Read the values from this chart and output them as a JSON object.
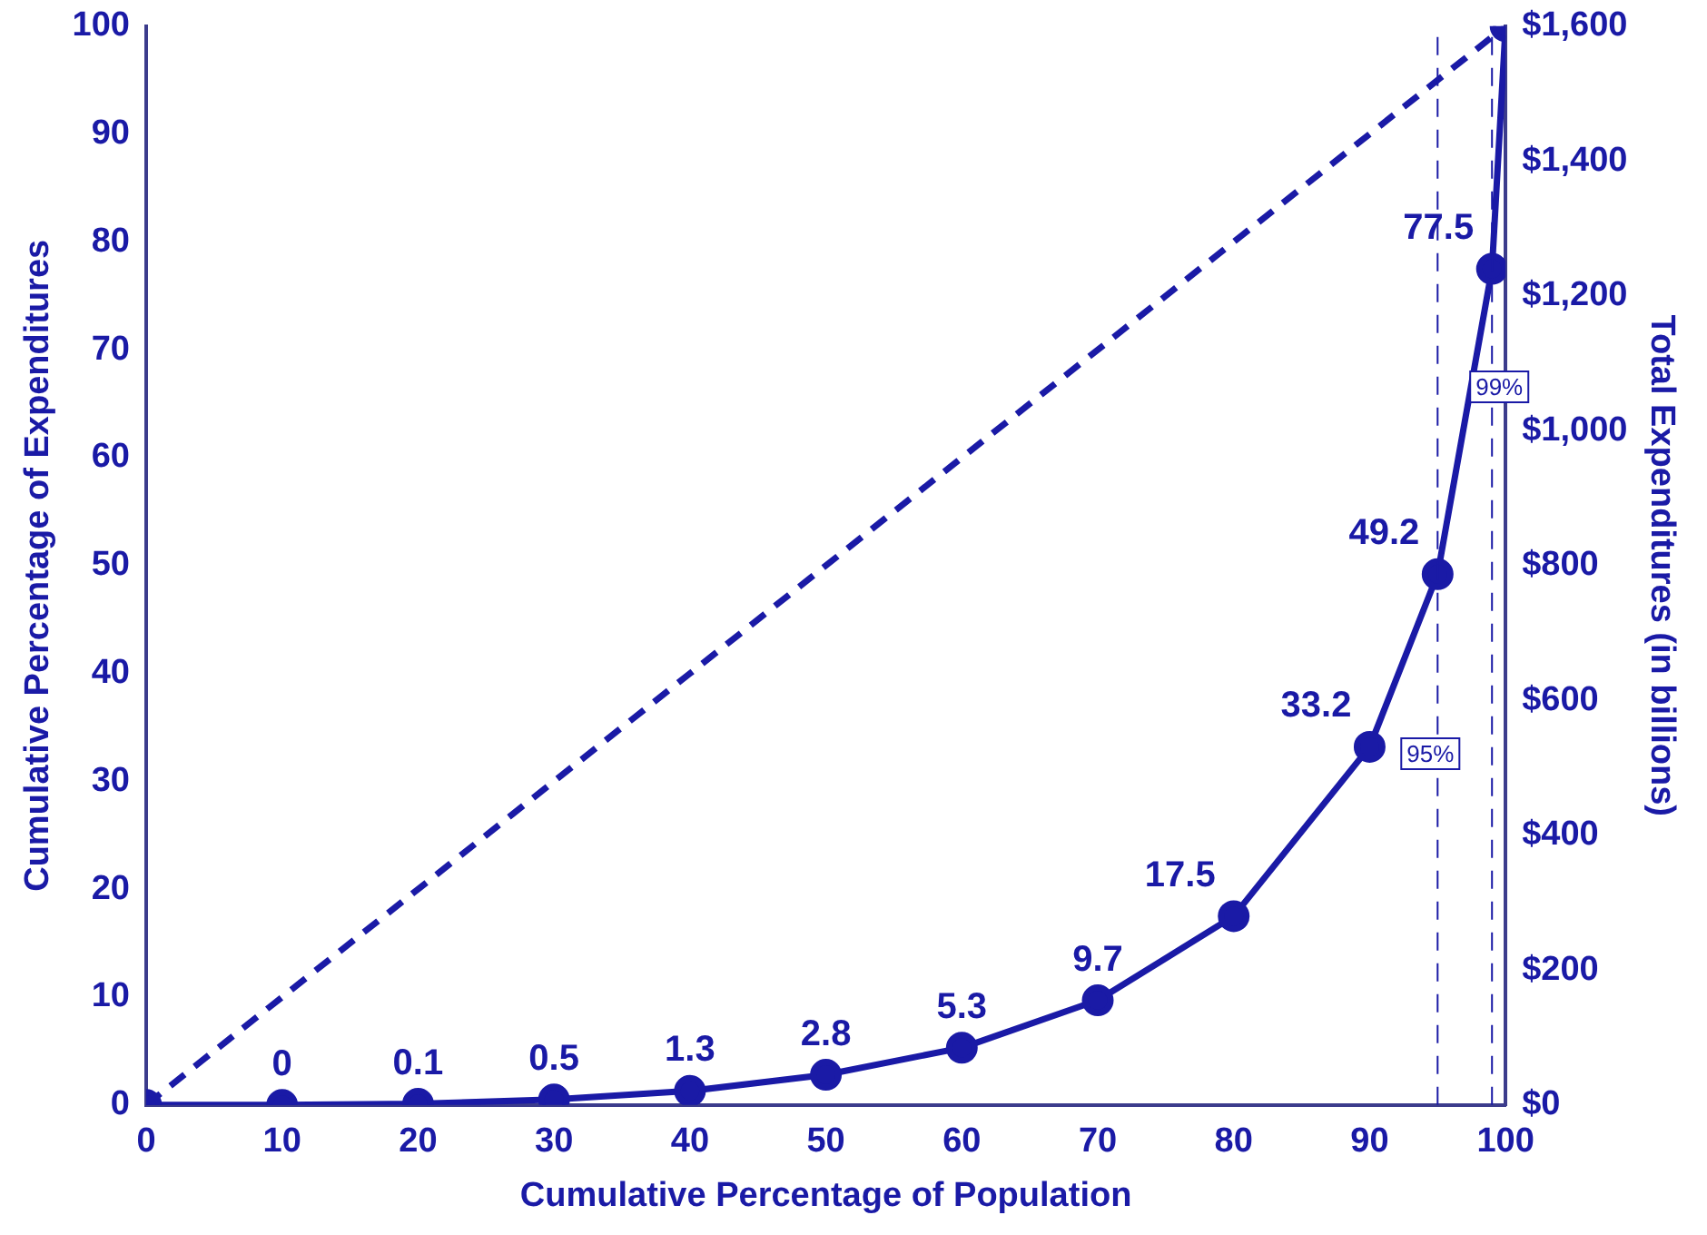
{
  "chart_data": {
    "type": "line",
    "xlabel": "Cumulative Percentage of Population",
    "ylabel": "Cumulative Percentage of Expenditures",
    "y2label": "Total Expenditures (in billions)",
    "series": [
      {
        "color": "#1a1aa6",
        "x": [
          0,
          10,
          20,
          30,
          40,
          50,
          60,
          70,
          80,
          90,
          95,
          99,
          100
        ],
        "values": [
          0,
          0,
          0.1,
          0.5,
          1.3,
          2.8,
          5.3,
          9.7,
          17.5,
          33.2,
          49.2,
          77.5,
          100
        ],
        "value_labels": [
          null,
          "0",
          "0.1",
          "0.5",
          "1.3",
          "2.8",
          "5.3",
          "9.7",
          "17.5",
          "33.2",
          "49.2",
          "77.5",
          null
        ],
        "marker": "circle",
        "line_style": "solid"
      },
      {
        "color": "#1a1aa6",
        "x": [
          0,
          100
        ],
        "values": [
          0,
          100
        ],
        "marker": "none",
        "line_style": "dashed"
      }
    ],
    "xlim": [
      0,
      100
    ],
    "xticks": [
      0,
      10,
      20,
      30,
      40,
      50,
      60,
      70,
      80,
      90,
      100
    ],
    "ylim": [
      0,
      100
    ],
    "yticks": [
      0,
      10,
      20,
      30,
      40,
      50,
      60,
      70,
      80,
      90,
      100
    ],
    "y2lim": [
      0,
      1600
    ],
    "y2ticks": [
      {
        "value": 0,
        "label": "$0"
      },
      {
        "value": 200,
        "label": "$200"
      },
      {
        "value": 400,
        "label": "$400"
      },
      {
        "value": 600,
        "label": "$600"
      },
      {
        "value": 800,
        "label": "$800"
      },
      {
        "value": 1000,
        "label": "$1,000"
      },
      {
        "value": 1200,
        "label": "$1,200"
      },
      {
        "value": 1400,
        "label": "$1,400"
      },
      {
        "value": 1600,
        "label": "$1,600"
      }
    ],
    "ref_lines": [
      {
        "axis": "x",
        "value": 95,
        "label": "95%",
        "color": "#1a1aa6",
        "line_style": "dashed"
      },
      {
        "axis": "x",
        "value": 99,
        "label": "99%",
        "color": "#1a1aa6",
        "line_style": "dashed"
      }
    ],
    "grid": false,
    "legend": false
  }
}
